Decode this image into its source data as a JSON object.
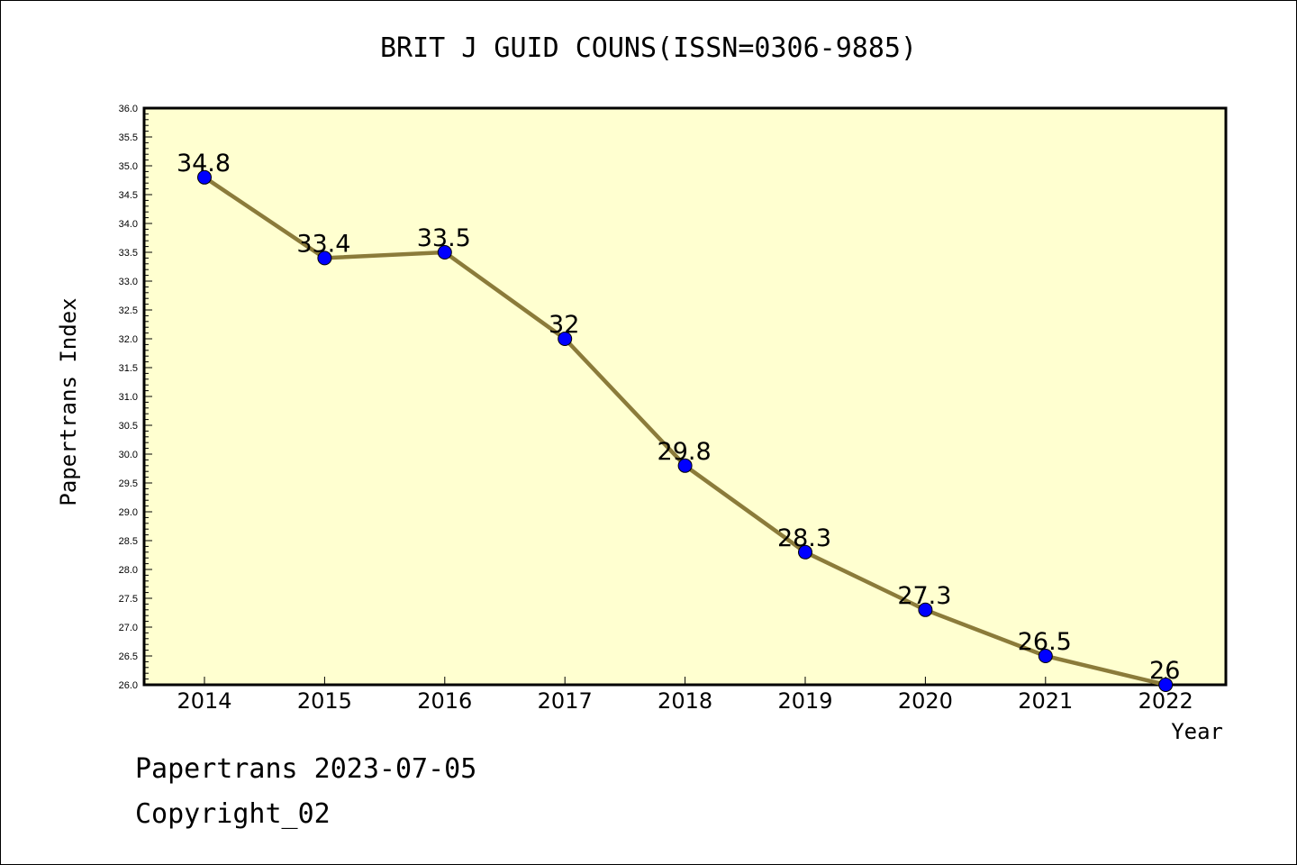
{
  "chart_data": {
    "type": "line",
    "title": "BRIT J GUID COUNS(ISSN=0306-9885)",
    "xlabel": "Year",
    "ylabel": "Papertrans Index",
    "categories": [
      "2014",
      "2015",
      "2016",
      "2017",
      "2018",
      "2019",
      "2020",
      "2021",
      "2022"
    ],
    "values": [
      34.8,
      33.4,
      33.5,
      32,
      29.8,
      28.3,
      27.3,
      26.5,
      26
    ],
    "data_labels": [
      "34.8",
      "33.4",
      "33.5",
      "32",
      "29.8",
      "28.3",
      "27.3",
      "26.5",
      "26"
    ],
    "ylim": [
      26.0,
      36.0
    ],
    "yticks": [
      "26.0",
      "26.5",
      "27.0",
      "27.5",
      "28.0",
      "28.5",
      "29.0",
      "29.5",
      "30.0",
      "30.5",
      "31.0",
      "31.5",
      "32.0",
      "32.5",
      "33.0",
      "33.5",
      "34.0",
      "34.5",
      "35.0",
      "35.5",
      "36.0"
    ],
    "grid": false,
    "colors": {
      "plot_background": "#FFFFD0",
      "line": "#8B7B3A",
      "marker": "#0000FF"
    }
  },
  "footer": {
    "line1": "Papertrans 2023-07-05",
    "line2": "Copyright_02"
  }
}
